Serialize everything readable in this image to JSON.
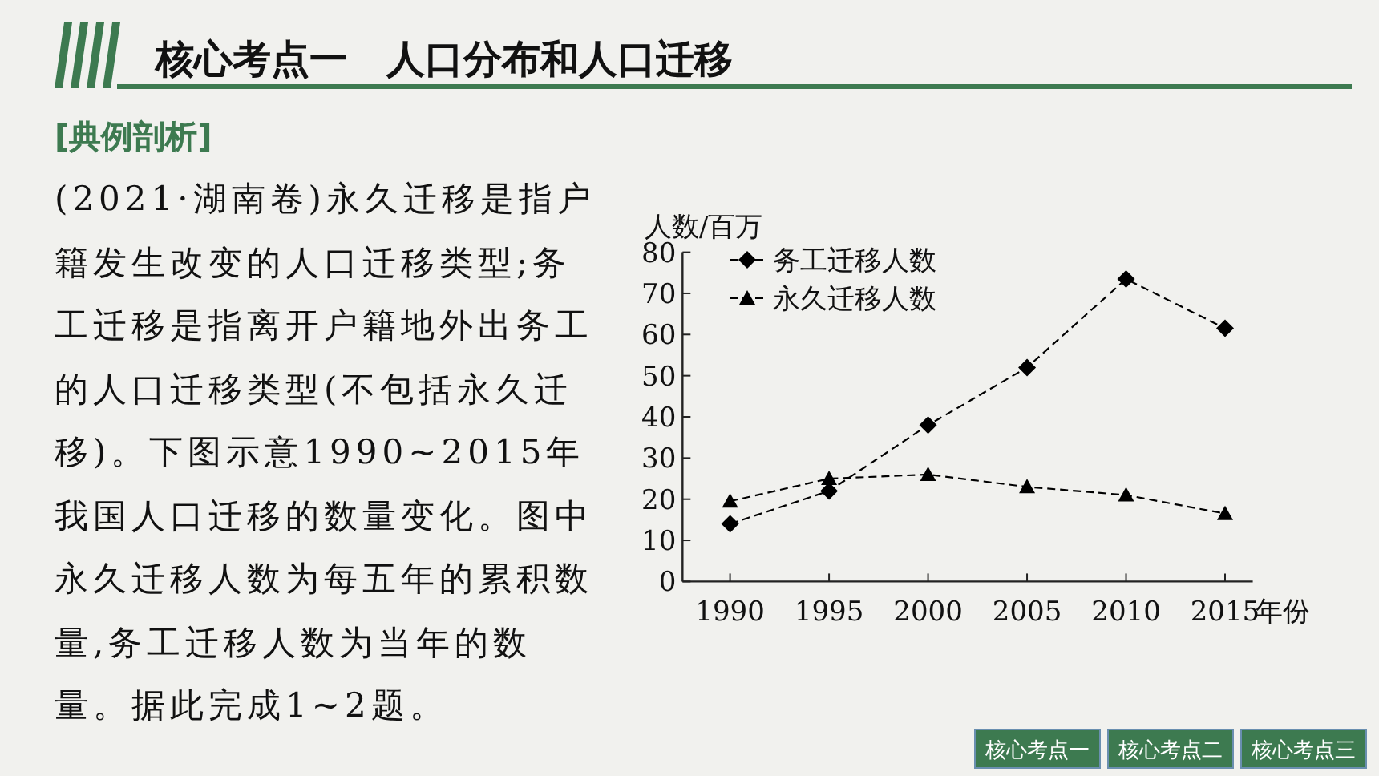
{
  "chart_data": {
    "type": "line",
    "title": "核心考点一　人口分布和人口迁移",
    "subtitle": "[典例剖析]",
    "annotations": [
      "(2021·湖南卷)永久迁移是指户籍发生改变的人口迁移类型;务工迁移是指离开户籍地外出务工的人口迁移类型(不包括永久迁移)。下图示意1990~2015年我国人口迁移的数量变化。图中永久迁移人数为每五年的累积数量,务工迁移人数为当年的数量。据此完成1~2题。",
      "核心考点一",
      "核心考点二",
      "核心考点三"
    ],
    "xlabel": "年份",
    "ylabel": "人数/百万",
    "x": [
      1990,
      1995,
      2000,
      2005,
      2010,
      2015
    ],
    "series": [
      {
        "name": "务工迁移人数",
        "color": "#000000",
        "marker": "diamond",
        "values": [
          14,
          22,
          38,
          52,
          73.5,
          61.5
        ]
      },
      {
        "name": "永久迁移人数",
        "color": "#000000",
        "marker": "triangle",
        "values": [
          19.5,
          25,
          26,
          23,
          21,
          16.5
        ]
      }
    ],
    "xlim": [
      1987.6,
      2016.4
    ],
    "xticks": [
      1990,
      1995,
      2000,
      2005,
      2010,
      2015
    ],
    "ylim": [
      0,
      80
    ],
    "yticks": [
      0,
      10,
      20,
      30,
      40,
      50,
      60,
      70,
      80
    ],
    "grid": false,
    "legend": "top left",
    "line_style": "dashed"
  }
}
